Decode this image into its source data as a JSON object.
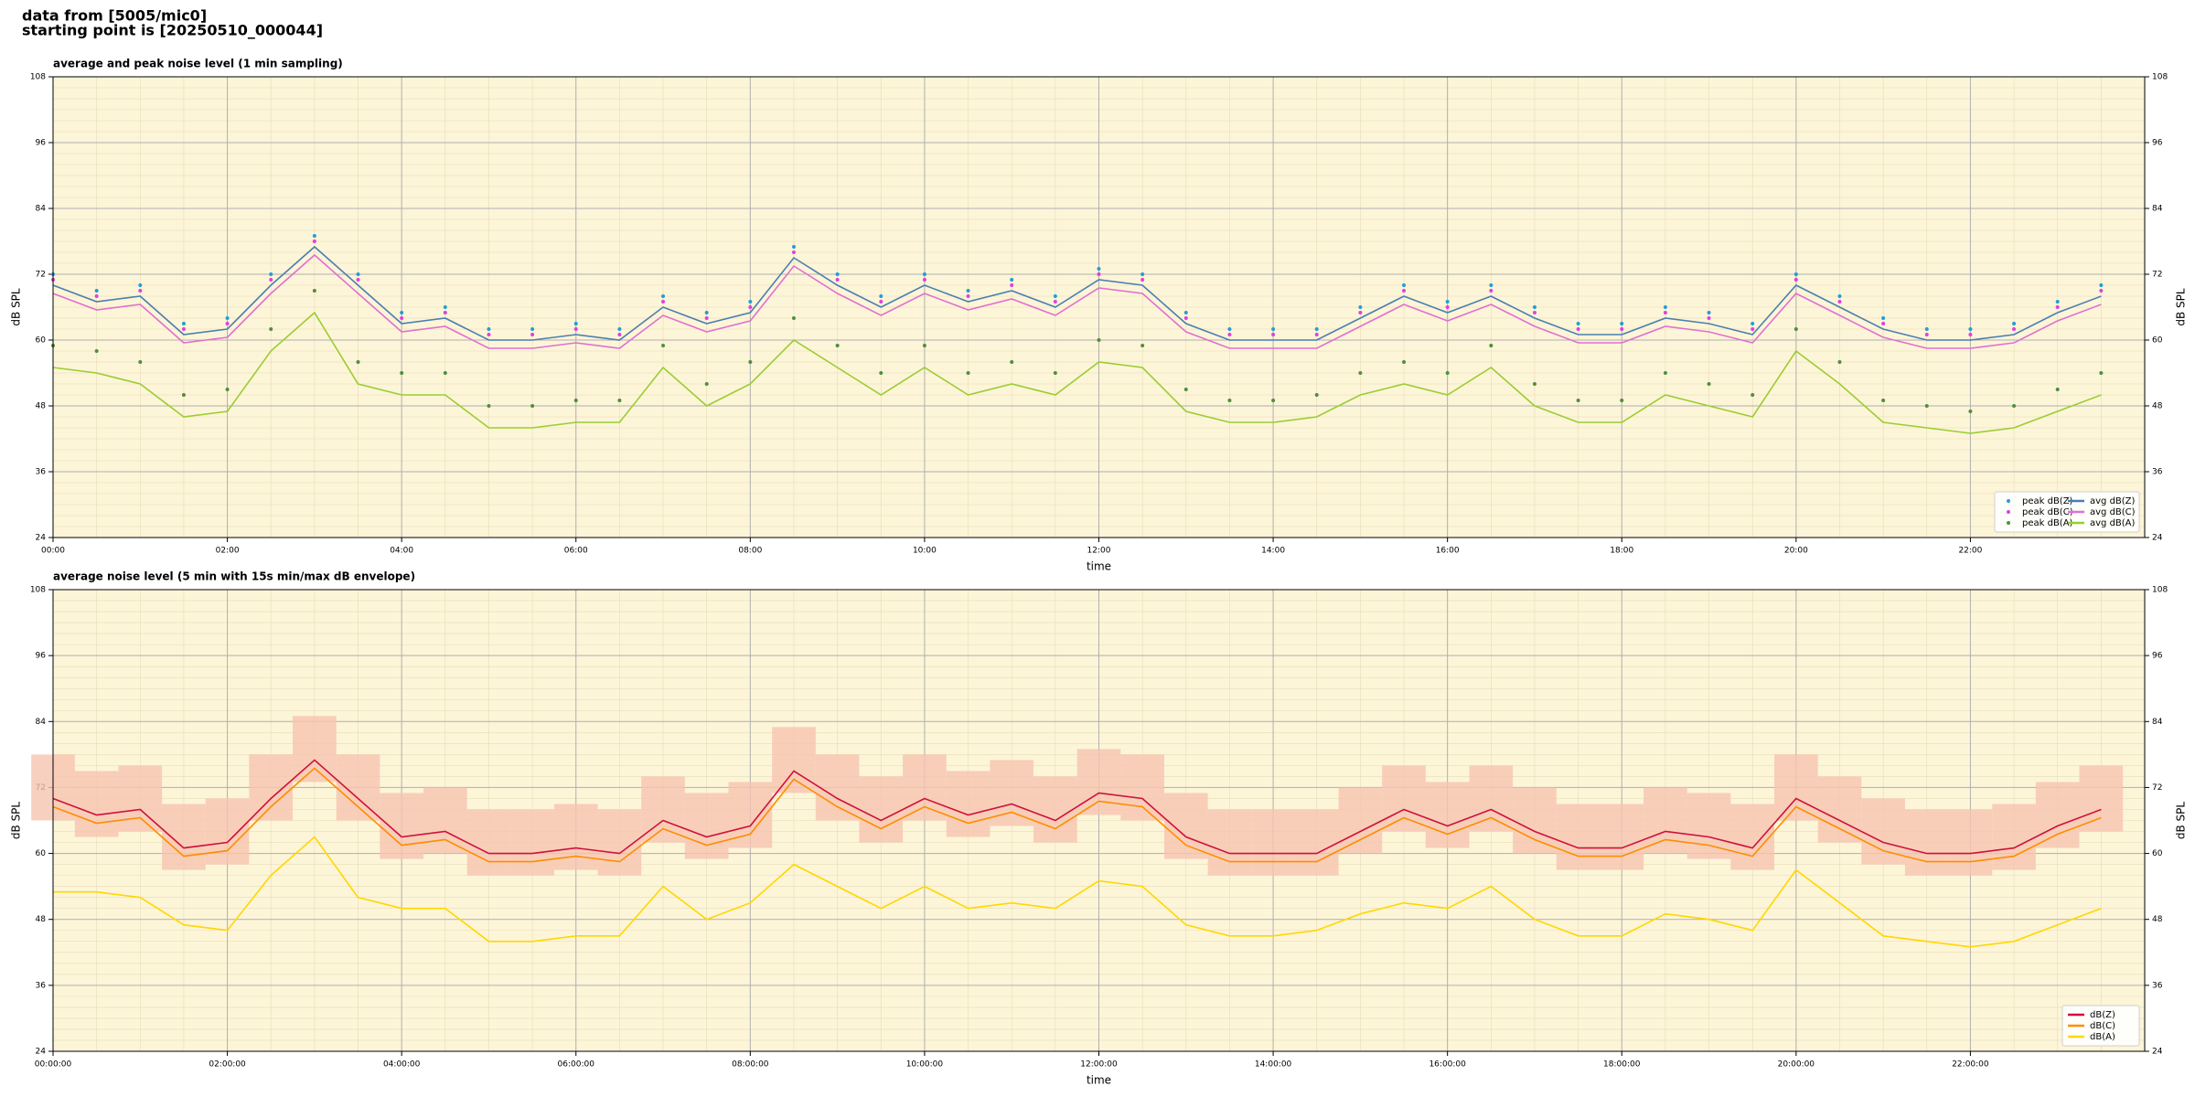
{
  "header": {
    "lines": [
      "data from [5005/mic0]",
      "starting point is [20250510_000044]"
    ]
  },
  "chart_data": [
    {
      "type": "line",
      "title": "average and peak noise level (1 min sampling)",
      "x_label": "time",
      "y_label": "dB SPL",
      "y2_label": "dB SPL",
      "facecolor": "#fdf5d8",
      "grid": true,
      "legend": "lower right",
      "xlim": [
        0,
        1440
      ],
      "ylim": [
        24,
        108
      ],
      "xticks": [
        {
          "value": 0,
          "label": "00:00"
        },
        {
          "value": 120,
          "label": "02:00"
        },
        {
          "value": 240,
          "label": "04:00"
        },
        {
          "value": 360,
          "label": "06:00"
        },
        {
          "value": 480,
          "label": "08:00"
        },
        {
          "value": 600,
          "label": "10:00"
        },
        {
          "value": 720,
          "label": "12:00"
        },
        {
          "value": 840,
          "label": "14:00"
        },
        {
          "value": 960,
          "label": "16:00"
        },
        {
          "value": 1080,
          "label": "18:00"
        },
        {
          "value": 1200,
          "label": "20:00"
        },
        {
          "value": 1320,
          "label": "22:00"
        }
      ],
      "yticks": [
        24,
        36,
        48,
        60,
        72,
        84,
        96,
        108
      ],
      "x": [
        0,
        30,
        60,
        90,
        120,
        150,
        180,
        210,
        240,
        270,
        300,
        330,
        360,
        390,
        420,
        450,
        480,
        510,
        540,
        570,
        600,
        630,
        660,
        690,
        720,
        750,
        780,
        810,
        840,
        870,
        900,
        930,
        960,
        990,
        1020,
        1050,
        1080,
        1110,
        1140,
        1170,
        1200,
        1230,
        1260,
        1290,
        1320,
        1350,
        1380,
        1410
      ],
      "series": [
        {
          "name": "peak dB(Z)",
          "style": "dots",
          "color": "#1f9fd8",
          "values": [
            72,
            69,
            70,
            63,
            64,
            72,
            79,
            72,
            65,
            66,
            62,
            62,
            63,
            62,
            68,
            65,
            67,
            77,
            72,
            68,
            72,
            69,
            71,
            68,
            73,
            72,
            65,
            62,
            62,
            62,
            66,
            70,
            67,
            70,
            66,
            63,
            63,
            66,
            65,
            63,
            72,
            68,
            64,
            62,
            62,
            63,
            67,
            70
          ]
        },
        {
          "name": "peak dB(C)",
          "style": "dots",
          "color": "#e040e0",
          "values": [
            71,
            68,
            69,
            62,
            63,
            71,
            78,
            71,
            64,
            65,
            61,
            61,
            62,
            61,
            67,
            64,
            66,
            76,
            71,
            67,
            71,
            68,
            70,
            67,
            72,
            71,
            64,
            61,
            61,
            61,
            65,
            69,
            66,
            69,
            65,
            62,
            62,
            65,
            64,
            62,
            71,
            67,
            63,
            61,
            61,
            62,
            66,
            69
          ]
        },
        {
          "name": "peak dB(A)",
          "style": "dots",
          "color": "#4f8f3a",
          "values": [
            59,
            58,
            56,
            50,
            51,
            62,
            69,
            56,
            54,
            54,
            48,
            48,
            49,
            49,
            59,
            52,
            56,
            64,
            59,
            54,
            59,
            54,
            56,
            54,
            60,
            59,
            51,
            49,
            49,
            50,
            54,
            56,
            54,
            59,
            52,
            49,
            49,
            54,
            52,
            50,
            62,
            56,
            49,
            48,
            47,
            48,
            51,
            54
          ]
        },
        {
          "name": "avg dB(Z)",
          "style": "line",
          "color": "#4a7fb0",
          "values": [
            70,
            67,
            68,
            61,
            62,
            70,
            77,
            70,
            63,
            64,
            60,
            60,
            61,
            60,
            66,
            63,
            65,
            75,
            70,
            66,
            70,
            67,
            69,
            66,
            71,
            70,
            63,
            60,
            60,
            60,
            64,
            68,
            65,
            68,
            64,
            61,
            61,
            64,
            63,
            61,
            70,
            66,
            62,
            60,
            60,
            61,
            65,
            68
          ]
        },
        {
          "name": "avg dB(C)",
          "style": "line",
          "color": "#e070d0",
          "values": [
            68.5,
            65.5,
            66.5,
            59.5,
            60.5,
            68.5,
            75.5,
            68.5,
            61.5,
            62.5,
            58.5,
            58.5,
            59.5,
            58.5,
            64.5,
            61.5,
            63.5,
            73.5,
            68.5,
            64.5,
            68.5,
            65.5,
            67.5,
            64.5,
            69.5,
            68.5,
            61.5,
            58.5,
            58.5,
            58.5,
            62.5,
            66.5,
            63.5,
            66.5,
            62.5,
            59.5,
            59.5,
            62.5,
            61.5,
            59.5,
            68.5,
            64.5,
            60.5,
            58.5,
            58.5,
            59.5,
            63.5,
            66.5
          ]
        },
        {
          "name": "avg dB(A)",
          "style": "line",
          "color": "#9acd32",
          "values": [
            55,
            54,
            52,
            46,
            47,
            58,
            65,
            52,
            50,
            50,
            44,
            44,
            45,
            45,
            55,
            48,
            52,
            60,
            55,
            50,
            55,
            50,
            52,
            50,
            56,
            55,
            47,
            45,
            45,
            46,
            50,
            52,
            50,
            55,
            48,
            45,
            45,
            50,
            48,
            46,
            58,
            52,
            45,
            44,
            43,
            44,
            47,
            50
          ]
        }
      ]
    },
    {
      "type": "line",
      "title": "average noise level (5 min with 15s min/max dB envelope)",
      "x_label": "time",
      "y_label": "dB SPL",
      "y2_label": "dB SPL",
      "facecolor": "#fdf5d8",
      "grid": true,
      "legend": "lower right",
      "xlim": [
        0,
        1440
      ],
      "ylim": [
        24,
        108
      ],
      "xticks": [
        {
          "value": 0,
          "label": "00:00:00"
        },
        {
          "value": 120,
          "label": "02:00:00"
        },
        {
          "value": 240,
          "label": "04:00:00"
        },
        {
          "value": 360,
          "label": "06:00:00"
        },
        {
          "value": 480,
          "label": "08:00:00"
        },
        {
          "value": 600,
          "label": "10:00:00"
        },
        {
          "value": 720,
          "label": "12:00:00"
        },
        {
          "value": 840,
          "label": "14:00:00"
        },
        {
          "value": 960,
          "label": "16:00:00"
        },
        {
          "value": 1080,
          "label": "18:00:00"
        },
        {
          "value": 1200,
          "label": "20:00:00"
        },
        {
          "value": 1320,
          "label": "22:00:00"
        }
      ],
      "yticks": [
        24,
        36,
        48,
        60,
        72,
        84,
        96,
        108
      ],
      "x": [
        0,
        30,
        60,
        90,
        120,
        150,
        180,
        210,
        240,
        270,
        300,
        330,
        360,
        390,
        420,
        450,
        480,
        510,
        540,
        570,
        600,
        630,
        660,
        690,
        720,
        750,
        780,
        810,
        840,
        870,
        900,
        930,
        960,
        990,
        1020,
        1050,
        1080,
        1110,
        1140,
        1170,
        1200,
        1230,
        1260,
        1290,
        1320,
        1350,
        1380,
        1410
      ],
      "envelope": {
        "color": "#f6c4b0",
        "low": [
          66,
          63,
          64,
          57,
          58,
          66,
          73,
          66,
          59,
          60,
          56,
          56,
          57,
          56,
          62,
          59,
          61,
          71,
          66,
          62,
          66,
          63,
          65,
          62,
          67,
          66,
          59,
          56,
          56,
          56,
          60,
          64,
          61,
          64,
          60,
          57,
          57,
          60,
          59,
          57,
          66,
          62,
          58,
          56,
          56,
          57,
          61,
          64
        ],
        "high": [
          78,
          75,
          76,
          69,
          70,
          78,
          85,
          78,
          71,
          72,
          68,
          68,
          69,
          68,
          74,
          71,
          73,
          83,
          78,
          74,
          78,
          75,
          77,
          74,
          79,
          78,
          71,
          68,
          68,
          68,
          72,
          76,
          73,
          76,
          72,
          69,
          69,
          72,
          71,
          69,
          78,
          74,
          70,
          68,
          68,
          69,
          73,
          76
        ]
      },
      "series": [
        {
          "name": "dB(Z)",
          "style": "line",
          "color": "#d0103a",
          "values": [
            70,
            67,
            68,
            61,
            62,
            70,
            77,
            70,
            63,
            64,
            60,
            60,
            61,
            60,
            66,
            63,
            65,
            75,
            70,
            66,
            70,
            67,
            69,
            66,
            71,
            70,
            63,
            60,
            60,
            60,
            64,
            68,
            65,
            68,
            64,
            61,
            61,
            64,
            63,
            61,
            70,
            66,
            62,
            60,
            60,
            61,
            65,
            68
          ]
        },
        {
          "name": "dB(C)",
          "style": "line",
          "color": "#ff8c00",
          "values": [
            68.5,
            65.5,
            66.5,
            59.5,
            60.5,
            68.5,
            75.5,
            68.5,
            61.5,
            62.5,
            58.5,
            58.5,
            59.5,
            58.5,
            64.5,
            61.5,
            63.5,
            73.5,
            68.5,
            64.5,
            68.5,
            65.5,
            67.5,
            64.5,
            69.5,
            68.5,
            61.5,
            58.5,
            58.5,
            58.5,
            62.5,
            66.5,
            63.5,
            66.5,
            62.5,
            59.5,
            59.5,
            62.5,
            61.5,
            59.5,
            68.5,
            64.5,
            60.5,
            58.5,
            58.5,
            59.5,
            63.5,
            66.5
          ]
        },
        {
          "name": "dB(A)",
          "style": "line",
          "color": "#ffd700",
          "values": [
            53,
            53,
            52,
            47,
            46,
            56,
            63,
            52,
            50,
            50,
            44,
            44,
            45,
            45,
            54,
            48,
            51,
            58,
            54,
            50,
            54,
            50,
            51,
            50,
            55,
            54,
            47,
            45,
            45,
            46,
            49,
            51,
            50,
            54,
            48,
            45,
            45,
            49,
            48,
            46,
            57,
            51,
            45,
            44,
            43,
            44,
            47,
            50
          ]
        }
      ]
    }
  ]
}
